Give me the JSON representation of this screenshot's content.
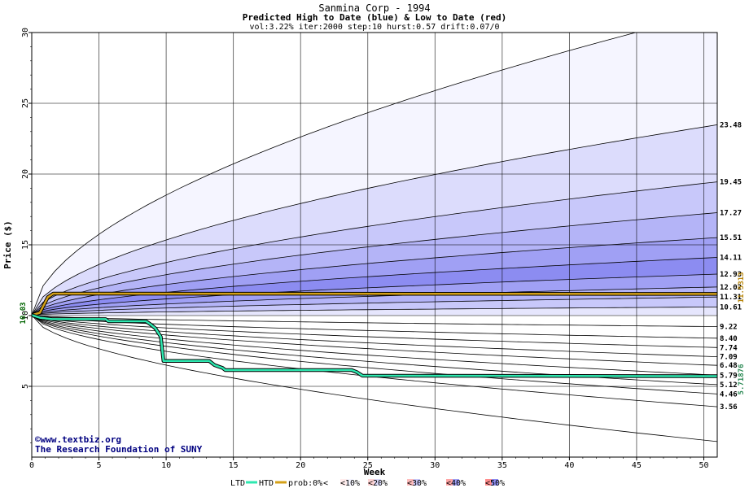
{
  "chart_data": {
    "type": "area",
    "title": "Sanmina Corp - 1994",
    "subtitle": "Predicted High to Date (blue) &  Low to Date (red)",
    "params": "vol:3.22% iter:2000 step:10 hurst:0.57 drift:0.07/0",
    "xlabel": "Week",
    "ylabel": "Price ($)",
    "xlim": [
      0,
      51
    ],
    "ylim": [
      0,
      30
    ],
    "x_ticks": [
      0,
      5,
      10,
      15,
      20,
      25,
      30,
      35,
      40,
      45,
      50
    ],
    "y_ticks": [
      5,
      10,
      15,
      20,
      25,
      30
    ],
    "grid": true,
    "start_price": 10.03,
    "start_label": "10.03",
    "high_bands": [
      {
        "end": 31.5,
        "label": "",
        "color": "#f5f5ff"
      },
      {
        "end": 23.48,
        "label": "23.48",
        "color": "#dcdcfc"
      },
      {
        "end": 19.45,
        "label": "19.45",
        "color": "#c8c8fa"
      },
      {
        "end": 17.27,
        "label": "17.27",
        "color": "#b4b4f7"
      },
      {
        "end": 15.51,
        "label": "15.51",
        "color": "#a0a0f4"
      },
      {
        "end": 14.11,
        "label": "14.11",
        "color": "#8c8cf1"
      },
      {
        "end": 12.93,
        "label": "12.93",
        "color": "#a0a0f4"
      },
      {
        "end": 12.02,
        "label": "12.02",
        "color": "#b4b4f7"
      },
      {
        "end": 11.31,
        "label": "11.31",
        "color": "#c8c8fa"
      },
      {
        "end": 10.61,
        "label": "10.61",
        "color": "#e6e6fd"
      }
    ],
    "low_bands": [
      {
        "end": 9.22,
        "label": "9.22",
        "color": "#ffecec"
      },
      {
        "end": 8.4,
        "label": "8.40",
        "color": "#ffd4d4"
      },
      {
        "end": 7.74,
        "label": "7.74",
        "color": "#ffbcbc"
      },
      {
        "end": 7.09,
        "label": "7.09",
        "color": "#ffa4a4"
      },
      {
        "end": 6.48,
        "label": "6.48",
        "color": "#ff8c8c"
      },
      {
        "end": 5.79,
        "label": "5.79",
        "color": "#ffa4a4"
      },
      {
        "end": 5.12,
        "label": "5.12",
        "color": "#ffbcbc"
      },
      {
        "end": 4.46,
        "label": "4.46",
        "color": "#ffd4d4"
      },
      {
        "end": 3.56,
        "label": "3.56",
        "color": "#ffecec"
      },
      {
        "end": 1.1,
        "label": "",
        "color": "#ffffff"
      }
    ],
    "htd_series": {
      "name": "HTD",
      "color": "#d4a017",
      "final_label": "11.5313",
      "points": [
        [
          0,
          10.03
        ],
        [
          0.6,
          10.2
        ],
        [
          1.2,
          11.3
        ],
        [
          1.6,
          11.55
        ],
        [
          51,
          11.53
        ]
      ]
    },
    "ltd_series": {
      "name": "LTD",
      "color": "#2ee8b0",
      "final_label": "5.71876",
      "points": [
        [
          0,
          10.03
        ],
        [
          0.6,
          9.85
        ],
        [
          1.5,
          9.75
        ],
        [
          5.5,
          9.75
        ],
        [
          5.7,
          9.6
        ],
        [
          8.5,
          9.6
        ],
        [
          8.8,
          9.4
        ],
        [
          9.2,
          9.1
        ],
        [
          9.6,
          8.5
        ],
        [
          9.8,
          6.8
        ],
        [
          13.2,
          6.8
        ],
        [
          13.6,
          6.5
        ],
        [
          14.2,
          6.3
        ],
        [
          14.4,
          6.15
        ],
        [
          23.8,
          6.15
        ],
        [
          24.2,
          6.0
        ],
        [
          24.6,
          5.75
        ],
        [
          51,
          5.72
        ]
      ]
    }
  },
  "credit": {
    "line1": "©www.textbiz.org",
    "line2": "The Research Foundation of SUNY"
  },
  "legend": {
    "ltd": "LTD",
    "htd": "HTD",
    "prob": "prob:0%",
    "p10": "<10%",
    "p20": "<20%",
    "p30": "<30%",
    "p40": "<40%",
    "p50": "<50%",
    "lt": "<",
    "colors": {
      "p0": [
        "#ffffff",
        "#ffffff"
      ],
      "p10": [
        "#ffecec",
        "#f5f5ff"
      ],
      "p20": [
        "#ffd4d4",
        "#dcdcfc"
      ],
      "p30": [
        "#ffbcbc",
        "#c8c8fa"
      ],
      "p40": [
        "#ffa4a4",
        "#a0a0f4"
      ],
      "p50": [
        "#ff8c8c",
        "#8c8cf1"
      ]
    }
  }
}
